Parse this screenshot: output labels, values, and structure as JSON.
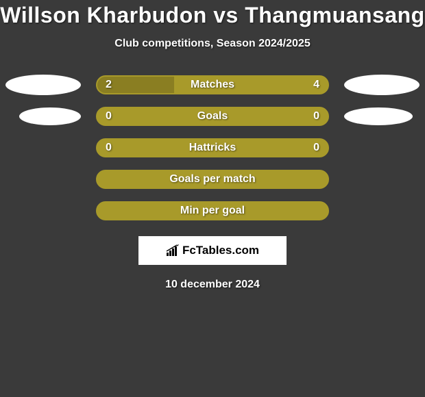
{
  "title": "Willson Kharbudon vs Thangmuansang",
  "subtitle": "Club competitions, Season 2024/2025",
  "date": "10 december 2024",
  "brand": {
    "text": "FcTables.com"
  },
  "colors": {
    "background": "#3a3a3a",
    "bar_primary": "#a89a2a",
    "bar_secondary": "#8a7e22",
    "text": "#ffffff",
    "ellipse": "#ffffff",
    "brand_bg": "#ffffff",
    "brand_text": "#000000"
  },
  "rows": [
    {
      "label": "Matches",
      "left_value": "2",
      "right_value": "4",
      "fill_percent": 33.3,
      "show_ellipses": true,
      "bar_bg": "#a89a2a",
      "fill_bg": "#8a7e22",
      "border_color": "#a89a2a"
    },
    {
      "label": "Goals",
      "left_value": "0",
      "right_value": "0",
      "fill_percent": 0,
      "show_ellipses": true,
      "bar_bg": "#a89a2a",
      "fill_bg": "#8a7e22",
      "border_color": "#a89a2a"
    },
    {
      "label": "Hattricks",
      "left_value": "0",
      "right_value": "0",
      "fill_percent": 0,
      "show_ellipses": false,
      "bar_bg": "#a89a2a",
      "fill_bg": "#8a7e22",
      "border_color": "#a89a2a"
    },
    {
      "label": "Goals per match",
      "left_value": "",
      "right_value": "",
      "fill_percent": 0,
      "show_ellipses": false,
      "bar_bg": "#a89a2a",
      "fill_bg": "#8a7e22",
      "border_color": "#a89a2a"
    },
    {
      "label": "Min per goal",
      "left_value": "",
      "right_value": "",
      "fill_percent": 0,
      "show_ellipses": false,
      "bar_bg": "#a89a2a",
      "fill_bg": "#8a7e22",
      "border_color": "#a89a2a"
    }
  ]
}
